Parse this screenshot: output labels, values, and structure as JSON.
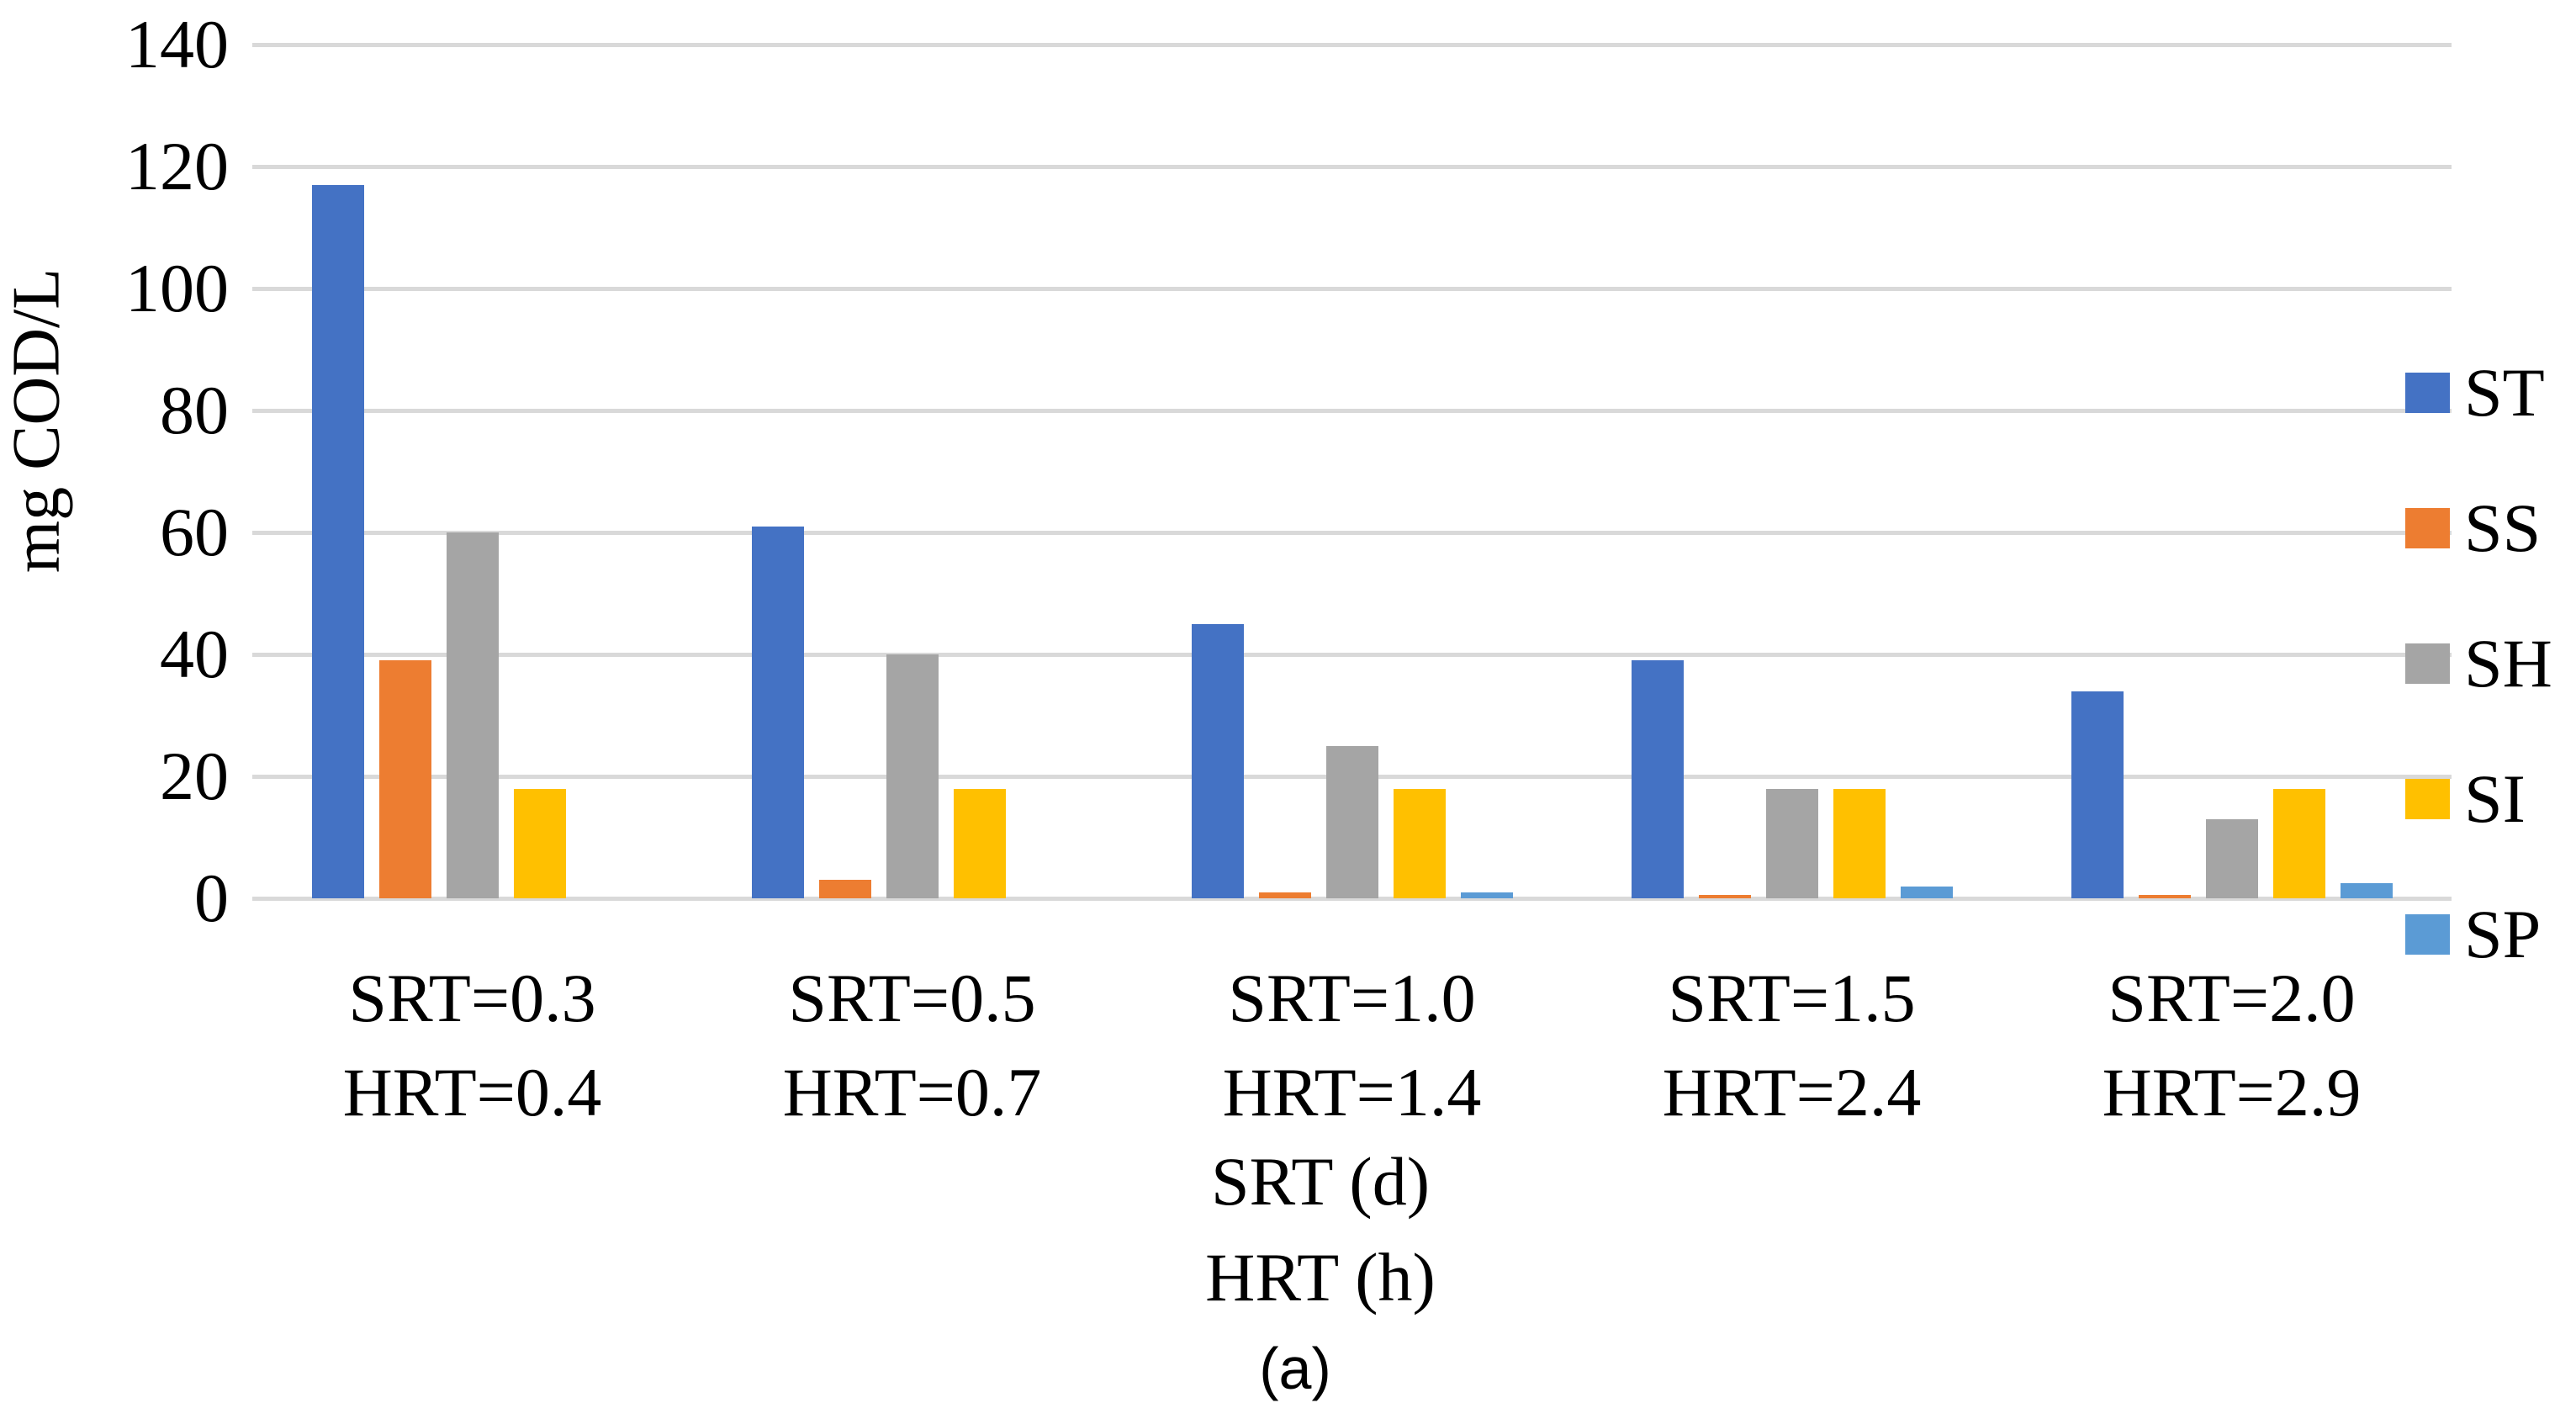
{
  "chart_data": {
    "type": "bar",
    "title": "",
    "ylabel": "mg COD/L",
    "xlabel_lines": [
      "SRT (d)",
      "HRT (h)"
    ],
    "caption": "(a)",
    "ylim": [
      0,
      140
    ],
    "yticks": [
      0,
      20,
      40,
      60,
      80,
      100,
      120,
      140
    ],
    "grid": true,
    "gridline_color": "#d9d9d9",
    "background": "#ffffff",
    "legend_position": "right",
    "categories": [
      {
        "line1": "SRT=0.3",
        "line2": "HRT=0.4"
      },
      {
        "line1": "SRT=0.5",
        "line2": "HRT=0.7"
      },
      {
        "line1": "SRT=1.0",
        "line2": "HRT=1.4"
      },
      {
        "line1": "SRT=1.5",
        "line2": "HRT=2.4"
      },
      {
        "line1": "SRT=2.0",
        "line2": "HRT=2.9"
      }
    ],
    "series": [
      {
        "name": "ST",
        "color": "#4472C4",
        "values": [
          117,
          61,
          45,
          39,
          34
        ]
      },
      {
        "name": "SS",
        "color": "#ED7D31",
        "values": [
          39,
          3,
          1,
          0.5,
          0.5
        ]
      },
      {
        "name": "SH",
        "color": "#A5A5A5",
        "values": [
          60,
          40,
          25,
          18,
          13
        ]
      },
      {
        "name": "SI",
        "color": "#FFC000",
        "values": [
          18,
          18,
          18,
          18,
          18
        ]
      },
      {
        "name": "SP",
        "color": "#5B9BD5",
        "values": [
          0,
          0,
          1,
          2,
          2.5
        ]
      }
    ]
  }
}
